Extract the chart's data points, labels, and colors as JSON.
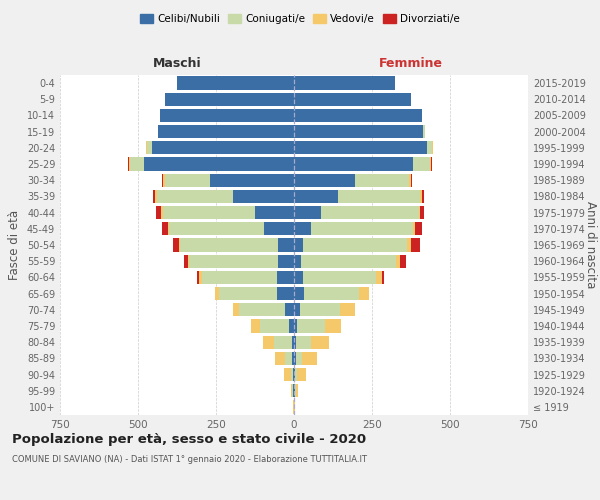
{
  "age_groups": [
    "100+",
    "95-99",
    "90-94",
    "85-89",
    "80-84",
    "75-79",
    "70-74",
    "65-69",
    "60-64",
    "55-59",
    "50-54",
    "45-49",
    "40-44",
    "35-39",
    "30-34",
    "25-29",
    "20-24",
    "15-19",
    "10-14",
    "5-9",
    "0-4"
  ],
  "birth_years": [
    "≤ 1919",
    "1920-1924",
    "1925-1929",
    "1930-1934",
    "1935-1939",
    "1940-1944",
    "1945-1949",
    "1950-1954",
    "1955-1959",
    "1960-1964",
    "1965-1969",
    "1970-1974",
    "1975-1979",
    "1980-1984",
    "1985-1989",
    "1990-1994",
    "1995-1999",
    "2000-2004",
    "2005-2009",
    "2010-2014",
    "2015-2019"
  ],
  "colors": {
    "celibe": "#3a6ea5",
    "coniugato": "#c8daa8",
    "vedovo": "#f5c96a",
    "divorziato": "#cc2222"
  },
  "males": {
    "celibe": [
      0,
      2,
      3,
      5,
      8,
      15,
      30,
      55,
      55,
      50,
      50,
      95,
      125,
      195,
      270,
      480,
      455,
      435,
      430,
      415,
      375
    ],
    "coniugato": [
      0,
      3,
      8,
      25,
      55,
      95,
      145,
      185,
      240,
      285,
      315,
      305,
      295,
      245,
      145,
      45,
      15,
      2,
      0,
      0,
      0
    ],
    "vedovo": [
      2,
      5,
      20,
      30,
      35,
      28,
      22,
      14,
      8,
      5,
      5,
      5,
      5,
      5,
      5,
      4,
      4,
      0,
      0,
      0,
      0
    ],
    "divorziato": [
      0,
      0,
      0,
      0,
      0,
      0,
      0,
      0,
      8,
      13,
      18,
      18,
      18,
      8,
      4,
      4,
      0,
      0,
      0,
      0,
      0
    ]
  },
  "females": {
    "nubile": [
      0,
      2,
      3,
      5,
      5,
      10,
      18,
      32,
      28,
      22,
      28,
      55,
      85,
      140,
      195,
      380,
      425,
      415,
      410,
      375,
      325
    ],
    "coniugata": [
      0,
      3,
      8,
      20,
      48,
      88,
      128,
      175,
      235,
      305,
      335,
      325,
      315,
      265,
      175,
      55,
      18,
      4,
      0,
      0,
      0
    ],
    "vedova": [
      3,
      8,
      28,
      48,
      58,
      52,
      48,
      32,
      18,
      13,
      13,
      8,
      5,
      5,
      4,
      4,
      4,
      0,
      0,
      0,
      0
    ],
    "divorziata": [
      0,
      0,
      0,
      0,
      0,
      0,
      0,
      0,
      8,
      18,
      28,
      22,
      12,
      8,
      4,
      4,
      0,
      0,
      0,
      0,
      0
    ]
  },
  "xlim": 750,
  "title": "Popolazione per età, sesso e stato civile - 2020",
  "subtitle": "COMUNE DI SAVIANO (NA) - Dati ISTAT 1° gennaio 2020 - Elaborazione TUTTITALIA.IT",
  "ylabel_left": "Fasce di età",
  "ylabel_right": "Anni di nascita",
  "legend_labels": [
    "Celibi/Nubili",
    "Coniugati/e",
    "Vedovi/e",
    "Divorziati/e"
  ],
  "bg_color": "#f0f0f0",
  "plot_bg": "#ffffff"
}
